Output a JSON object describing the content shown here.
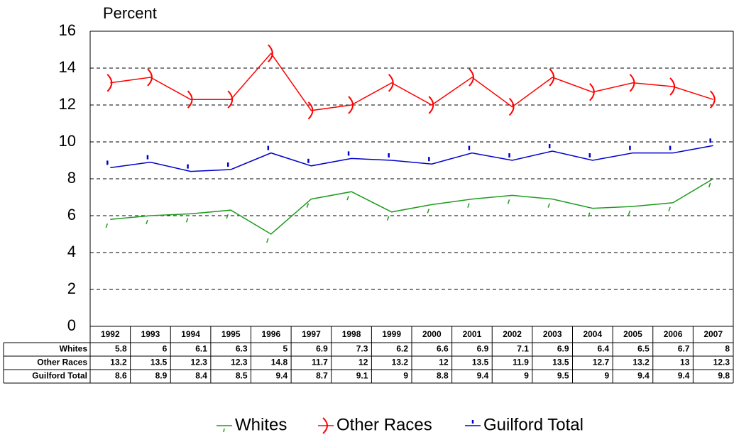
{
  "chart_data": {
    "type": "line",
    "y_label": "Percent",
    "categories": [
      "1992",
      "1993",
      "1994",
      "1995",
      "1996",
      "1997",
      "1998",
      "1999",
      "2000",
      "2001",
      "2002",
      "2003",
      "2004",
      "2005",
      "2006",
      "2007"
    ],
    "series": [
      {
        "name": "Whites",
        "color": "#1f9b1f",
        "values": [
          5.8,
          6,
          6.1,
          6.3,
          5,
          6.9,
          7.3,
          6.2,
          6.6,
          6.9,
          7.1,
          6.9,
          6.4,
          6.5,
          6.7,
          8
        ]
      },
      {
        "name": "Other Races",
        "color": "#ff0000",
        "values": [
          13.2,
          13.5,
          12.3,
          12.3,
          14.8,
          11.7,
          12,
          13.2,
          12,
          13.5,
          11.9,
          13.5,
          12.7,
          13.2,
          13,
          12.3
        ]
      },
      {
        "name": "Guilford Total",
        "color": "#0000cc",
        "values": [
          8.6,
          8.9,
          8.4,
          8.5,
          9.4,
          8.7,
          9.1,
          9,
          8.8,
          9.4,
          9,
          9.5,
          9,
          9.4,
          9.4,
          9.8
        ]
      }
    ],
    "ylim": [
      0,
      16
    ],
    "yticks": [
      0,
      2,
      4,
      6,
      8,
      10,
      12,
      14,
      16
    ],
    "grid": true
  }
}
